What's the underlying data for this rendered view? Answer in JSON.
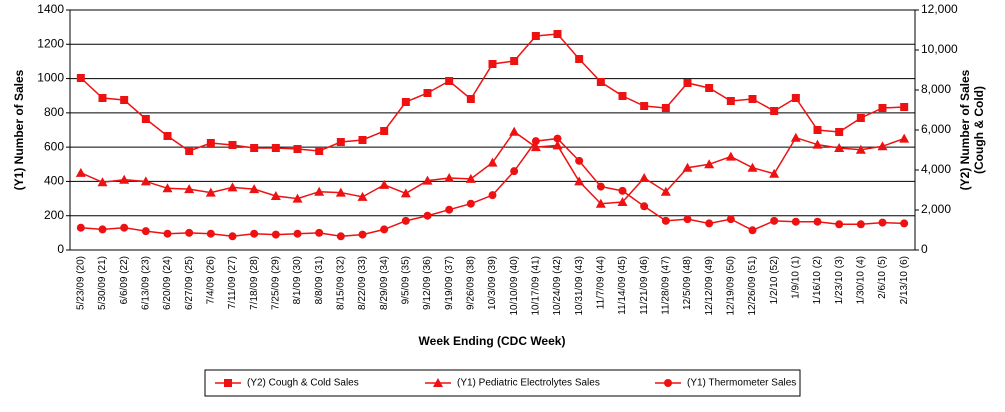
{
  "chart_data": {
    "type": "line",
    "x_label": "Week Ending (CDC Week)",
    "y_label": "(Y1) Number of Sales",
    "y2_label": [
      "(Y2) Number of Sales",
      "(Cough & Cold)"
    ],
    "categories": [
      "5/23/09 (20)",
      "5/30/09 (21)",
      "6/6/09 (22)",
      "6/13/09 (23)",
      "6/20/09 (24)",
      "6/27/09 (25)",
      "7/4/09 (26)",
      "7/11/09 (27)",
      "7/18/09 (28)",
      "7/25/09 (29)",
      "8/1/09 (30)",
      "8/8/09 (31)",
      "8/15/09 (32)",
      "8/22/09 (33)",
      "8/29/09 (34)",
      "9/5/09 (35)",
      "9/12/09 (36)",
      "9/19/09 (37)",
      "9/26/09 (38)",
      "10/3/09 (39)",
      "10/10/09 (40)",
      "10/17/09 (41)",
      "10/24/09 (42)",
      "10/31/09 (43)",
      "11/7/09 (44)",
      "11/14/09 (45)",
      "11/21/09 (46)",
      "11/28/09 (47)",
      "12/5/09 (48)",
      "12/12/09 (49)",
      "12/19/09 (50)",
      "12/26/09 (51)",
      "1/2/10 (52)",
      "1/9/10 (1)",
      "1/16/10 (2)",
      "1/23/10 (3)",
      "1/30/10 (4)",
      "2/6/10 (5)",
      "2/13/10 (6)"
    ],
    "series": [
      {
        "name": "(Y2) Cough & Cold Sales",
        "color": "#ee1111",
        "marker": "square",
        "axis": "y2",
        "values": [
          8600,
          7600,
          7500,
          6550,
          5700,
          4950,
          5350,
          5250,
          5100,
          5100,
          5050,
          4950,
          5400,
          5500,
          5950,
          7400,
          7850,
          8450,
          7550,
          9300,
          9450,
          10700,
          10800,
          9550,
          8400,
          7700,
          7200,
          7100,
          8350,
          8100,
          7450,
          7550,
          6950,
          7600,
          6000,
          5900,
          6600,
          7100,
          7150
        ]
      },
      {
        "name": "(Y1) Pediatric Electrolytes Sales",
        "color": "#ee1111",
        "marker": "triangle",
        "values": [
          450,
          395,
          410,
          400,
          360,
          355,
          335,
          365,
          355,
          315,
          300,
          340,
          335,
          310,
          380,
          330,
          405,
          420,
          415,
          510,
          690,
          600,
          610,
          400,
          270,
          280,
          420,
          340,
          480,
          500,
          545,
          480,
          445,
          655,
          615,
          595,
          585,
          605,
          650
        ]
      },
      {
        "name": "(Y1) Thermometer Sales",
        "color": "#ee1111",
        "marker": "circle",
        "values": [
          130,
          120,
          130,
          110,
          95,
          100,
          95,
          80,
          95,
          90,
          95,
          100,
          80,
          90,
          120,
          170,
          200,
          235,
          270,
          320,
          460,
          635,
          650,
          520,
          370,
          345,
          255,
          170,
          180,
          155,
          180,
          115,
          170,
          165,
          165,
          150,
          150,
          160,
          155
        ]
      }
    ],
    "ylim": [
      0,
      1400
    ],
    "yticks": [
      0,
      200,
      400,
      600,
      800,
      1000,
      1200,
      1400
    ],
    "y2lim": [
      0,
      12000
    ],
    "y2ticks": [
      0,
      {
        "value": 2000,
        "label": "2,000"
      },
      {
        "value": 4000,
        "label": "4,000"
      },
      {
        "value": 6000,
        "label": "6,000"
      },
      {
        "value": 8000,
        "label": "8,000"
      },
      {
        "value": 10000,
        "label": "10,000"
      },
      {
        "value": 12000,
        "label": "12,000"
      }
    ],
    "grid": true
  }
}
